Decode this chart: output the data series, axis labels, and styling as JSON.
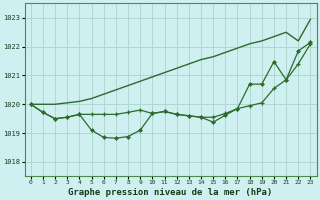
{
  "title": "Graphe pression niveau de la mer (hPa)",
  "background_color": "#cff0f0",
  "grid_color": "#b0d8d0",
  "line_color": "#2d6a2d",
  "xlim": [
    -0.5,
    23.5
  ],
  "ylim": [
    1017.5,
    1023.5
  ],
  "yticks": [
    1018,
    1019,
    1020,
    1021,
    1022,
    1023
  ],
  "xticks": [
    0,
    1,
    2,
    3,
    4,
    5,
    6,
    7,
    8,
    9,
    10,
    11,
    12,
    13,
    14,
    15,
    16,
    17,
    18,
    19,
    20,
    21,
    22,
    23
  ],
  "line_smooth": [
    1020.0,
    1020.0,
    1020.0,
    1020.05,
    1020.1,
    1020.2,
    1020.35,
    1020.5,
    1020.65,
    1020.8,
    1020.95,
    1021.1,
    1021.25,
    1021.4,
    1021.55,
    1021.65,
    1021.8,
    1021.95,
    1022.1,
    1022.2,
    1022.35,
    1022.5,
    1022.2,
    1022.95
  ],
  "line_cross": [
    1020.0,
    1019.72,
    1019.5,
    1019.55,
    1019.65,
    1019.65,
    1019.65,
    1019.65,
    1019.72,
    1019.8,
    1019.68,
    1019.75,
    1019.65,
    1019.6,
    1019.55,
    1019.55,
    1019.68,
    1019.85,
    1019.95,
    1020.05,
    1020.55,
    1020.85,
    1021.4,
    1022.1
  ],
  "line_diamond": [
    1020.0,
    1019.72,
    1019.5,
    1019.55,
    1019.65,
    1019.1,
    1018.85,
    1018.82,
    1018.88,
    1019.1,
    1019.68,
    1019.75,
    1019.65,
    1019.6,
    1019.55,
    1019.38,
    1019.62,
    1019.85,
    1020.7,
    1020.7,
    1021.48,
    1020.85,
    1021.85,
    1022.15
  ]
}
